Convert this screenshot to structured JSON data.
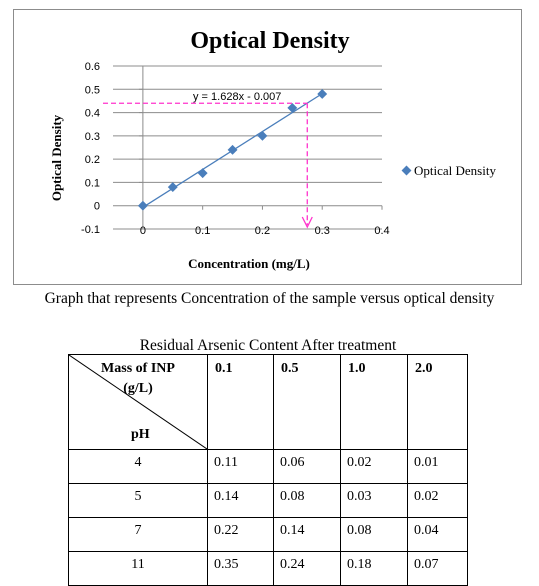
{
  "chart_data": {
    "type": "scatter",
    "title": "Optical Density",
    "xlabel": "Concentration (mg/L)",
    "ylabel": "Optical Density",
    "xlim": [
      -0.05,
      0.4
    ],
    "ylim": [
      -0.1,
      0.6
    ],
    "x_ticks": [
      "0",
      "0.1",
      "0.2",
      "0.3",
      "0.4"
    ],
    "x_tick_values": [
      0,
      0.1,
      0.2,
      0.3,
      0.4
    ],
    "y_ticks": [
      "-0.1",
      "0",
      "0.1",
      "0.2",
      "0.3",
      "0.4",
      "0.5",
      "0.6"
    ],
    "y_tick_values": [
      -0.1,
      0,
      0.1,
      0.2,
      0.3,
      0.4,
      0.5,
      0.6
    ],
    "grid": true,
    "legend_position": "right",
    "series": [
      {
        "name": "Optical Density",
        "marker": "diamond",
        "color": "#4a7ebb",
        "x": [
          0,
          0.05,
          0.1,
          0.15,
          0.2,
          0.25,
          0.3
        ],
        "y": [
          0,
          0.08,
          0.14,
          0.24,
          0.3,
          0.42,
          0.48
        ]
      }
    ],
    "trendline": {
      "slope": 1.628,
      "intercept": -0.007,
      "color": "#4a7ebb",
      "equation": "y = 1.628x - 0.007"
    },
    "annotation_lines": {
      "color": "#ff33cc",
      "x": 0.275,
      "y": 0.44
    }
  },
  "caption": "Graph that represents Concentration of the sample versus optical density",
  "table": {
    "title": "Residual Arsenic Content After treatment",
    "corner_top": "Mass of INP",
    "corner_unit": "(g/L)",
    "corner_ph": "pH",
    "columns": [
      "0.1",
      "0.5",
      "1.0",
      "2.0"
    ],
    "rows": [
      {
        "ph": "4",
        "values": [
          "0.11",
          "0.06",
          "0.02",
          "0.01"
        ]
      },
      {
        "ph": "5",
        "values": [
          "0.14",
          "0.08",
          "0.03",
          "0.02"
        ]
      },
      {
        "ph": "7",
        "values": [
          "0.22",
          "0.14",
          "0.08",
          "0.04"
        ]
      },
      {
        "ph": "11",
        "values": [
          "0.35",
          "0.24",
          "0.18",
          "0.07"
        ]
      }
    ]
  }
}
